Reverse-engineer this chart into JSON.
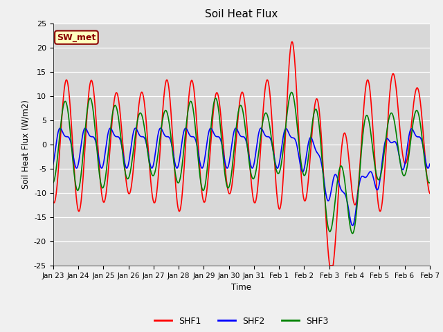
{
  "title": "Soil Heat Flux",
  "ylabel": "Soil Heat Flux (W/m2)",
  "xlabel": "Time",
  "ylim": [
    -25,
    25
  ],
  "yticks": [
    -25,
    -20,
    -15,
    -10,
    -5,
    0,
    5,
    10,
    15,
    20,
    25
  ],
  "bg_color": "#d8d8d8",
  "fig_color": "#f0f0f0",
  "legend_label": "SW_met",
  "series": [
    "SHF1",
    "SHF2",
    "SHF3"
  ],
  "colors": [
    "red",
    "blue",
    "green"
  ],
  "linewidth": 1.2,
  "day_labels": [
    "Jan 23",
    "Jan 24",
    "Jan 25",
    "Jan 26",
    "Jan 27",
    "Jan 28",
    "Jan 29",
    "Jan 30",
    "Jan 31",
    "Feb 1",
    "Feb 2",
    "Feb 3",
    "Feb 4",
    "Feb 5",
    "Feb 6",
    "Feb 7"
  ]
}
